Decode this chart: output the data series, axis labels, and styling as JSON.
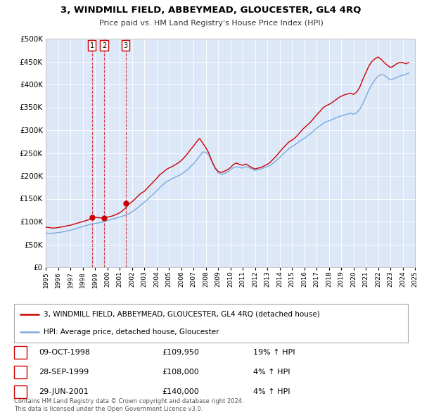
{
  "title": "3, WINDMILL FIELD, ABBEYMEAD, GLOUCESTER, GL4 4RQ",
  "subtitle": "Price paid vs. HM Land Registry's House Price Index (HPI)",
  "legend_line1": "3, WINDMILL FIELD, ABBEYMEAD, GLOUCESTER, GL4 4RQ (detached house)",
  "legend_line2": "HPI: Average price, detached house, Gloucester",
  "red_line_color": "#cc0000",
  "blue_line_color": "#7aaadd",
  "plot_bg_color": "#dce8f8",
  "footer1": "Contains HM Land Registry data © Crown copyright and database right 2024.",
  "footer2": "This data is licensed under the Open Government Licence v3.0.",
  "transactions": [
    {
      "num": 1,
      "date_label": "09-OCT-1998",
      "price": 109950,
      "date_x": 1998.77,
      "pct": "19%"
    },
    {
      "num": 2,
      "date_label": "28-SEP-1999",
      "price": 108000,
      "date_x": 1999.74,
      "pct": "4%"
    },
    {
      "num": 3,
      "date_label": "29-JUN-2001",
      "price": 140000,
      "date_x": 2001.49,
      "pct": "4%"
    }
  ],
  "hpi_x": [
    1995.0,
    1995.25,
    1995.5,
    1995.75,
    1996.0,
    1996.25,
    1996.5,
    1996.75,
    1997.0,
    1997.25,
    1997.5,
    1997.75,
    1998.0,
    1998.25,
    1998.5,
    1998.75,
    1999.0,
    1999.25,
    1999.5,
    1999.75,
    2000.0,
    2000.25,
    2000.5,
    2000.75,
    2001.0,
    2001.25,
    2001.5,
    2001.75,
    2002.0,
    2002.25,
    2002.5,
    2002.75,
    2003.0,
    2003.25,
    2003.5,
    2003.75,
    2004.0,
    2004.25,
    2004.5,
    2004.75,
    2005.0,
    2005.25,
    2005.5,
    2005.75,
    2006.0,
    2006.25,
    2006.5,
    2006.75,
    2007.0,
    2007.25,
    2007.5,
    2007.75,
    2008.0,
    2008.25,
    2008.5,
    2008.75,
    2009.0,
    2009.25,
    2009.5,
    2009.75,
    2010.0,
    2010.25,
    2010.5,
    2010.75,
    2011.0,
    2011.25,
    2011.5,
    2011.75,
    2012.0,
    2012.25,
    2012.5,
    2012.75,
    2013.0,
    2013.25,
    2013.5,
    2013.75,
    2014.0,
    2014.25,
    2014.5,
    2014.75,
    2015.0,
    2015.25,
    2015.5,
    2015.75,
    2016.0,
    2016.25,
    2016.5,
    2016.75,
    2017.0,
    2017.25,
    2017.5,
    2017.75,
    2018.0,
    2018.25,
    2018.5,
    2018.75,
    2019.0,
    2019.25,
    2019.5,
    2019.75,
    2020.0,
    2020.25,
    2020.5,
    2020.75,
    2021.0,
    2021.25,
    2021.5,
    2021.75,
    2022.0,
    2022.25,
    2022.5,
    2022.75,
    2023.0,
    2023.25,
    2023.5,
    2023.75,
    2024.0,
    2024.25,
    2024.5
  ],
  "hpi_y": [
    75000,
    74000,
    74500,
    75000,
    76000,
    77000,
    78000,
    79500,
    81000,
    83000,
    85000,
    87000,
    89000,
    91000,
    93000,
    95000,
    96000,
    97000,
    98500,
    100000,
    102000,
    104000,
    106000,
    108000,
    110000,
    112000,
    114000,
    117000,
    121000,
    126000,
    131000,
    137000,
    142000,
    148000,
    154000,
    160000,
    167000,
    174000,
    180000,
    186000,
    190000,
    194000,
    197000,
    200000,
    203000,
    208000,
    213000,
    220000,
    226000,
    234000,
    243000,
    252000,
    252000,
    245000,
    232000,
    217000,
    207000,
    203000,
    205000,
    208000,
    213000,
    218000,
    220000,
    218000,
    217000,
    220000,
    218000,
    215000,
    212000,
    213000,
    215000,
    218000,
    220000,
    223000,
    228000,
    234000,
    240000,
    247000,
    253000,
    259000,
    264000,
    268000,
    273000,
    278000,
    282000,
    287000,
    292000,
    298000,
    304000,
    309000,
    314000,
    318000,
    320000,
    323000,
    326000,
    329000,
    331000,
    333000,
    335000,
    337000,
    335000,
    338000,
    345000,
    357000,
    372000,
    388000,
    400000,
    410000,
    418000,
    422000,
    420000,
    415000,
    410000,
    412000,
    415000,
    418000,
    420000,
    422000,
    425000
  ],
  "red_x": [
    1995.0,
    1995.25,
    1995.5,
    1995.75,
    1996.0,
    1996.25,
    1996.5,
    1996.75,
    1997.0,
    1997.25,
    1997.5,
    1997.75,
    1998.0,
    1998.25,
    1998.5,
    1998.75,
    1999.0,
    1999.25,
    1999.5,
    1999.75,
    2000.0,
    2000.25,
    2000.5,
    2000.75,
    2001.0,
    2001.25,
    2001.5,
    2001.75,
    2002.0,
    2002.25,
    2002.5,
    2002.75,
    2003.0,
    2003.25,
    2003.5,
    2003.75,
    2004.0,
    2004.25,
    2004.5,
    2004.75,
    2005.0,
    2005.25,
    2005.5,
    2005.75,
    2006.0,
    2006.25,
    2006.5,
    2006.75,
    2007.0,
    2007.25,
    2007.5,
    2007.75,
    2008.0,
    2008.25,
    2008.5,
    2008.75,
    2009.0,
    2009.25,
    2009.5,
    2009.75,
    2010.0,
    2010.25,
    2010.5,
    2010.75,
    2011.0,
    2011.25,
    2011.5,
    2011.75,
    2012.0,
    2012.25,
    2012.5,
    2012.75,
    2013.0,
    2013.25,
    2013.5,
    2013.75,
    2014.0,
    2014.25,
    2014.5,
    2014.75,
    2015.0,
    2015.25,
    2015.5,
    2015.75,
    2016.0,
    2016.25,
    2016.5,
    2016.75,
    2017.0,
    2017.25,
    2017.5,
    2017.75,
    2018.0,
    2018.25,
    2018.5,
    2018.75,
    2019.0,
    2019.25,
    2019.5,
    2019.75,
    2020.0,
    2020.25,
    2020.5,
    2020.75,
    2021.0,
    2021.25,
    2021.5,
    2021.75,
    2022.0,
    2022.25,
    2022.5,
    2022.75,
    2023.0,
    2023.25,
    2023.5,
    2023.75,
    2024.0,
    2024.25,
    2024.5
  ],
  "red_y": [
    88000,
    87000,
    86000,
    86000,
    87000,
    88000,
    89000,
    91000,
    92000,
    94000,
    96000,
    98000,
    100000,
    102000,
    104000,
    108000,
    110000,
    108500,
    108000,
    108000,
    110000,
    111000,
    113000,
    116000,
    119000,
    124000,
    130000,
    138000,
    143000,
    149000,
    156000,
    162000,
    166000,
    173000,
    180000,
    187000,
    194000,
    202000,
    207000,
    213000,
    217000,
    220000,
    224000,
    228000,
    233000,
    240000,
    248000,
    257000,
    265000,
    274000,
    282000,
    272000,
    262000,
    250000,
    232000,
    218000,
    210000,
    207000,
    210000,
    213000,
    218000,
    225000,
    228000,
    225000,
    223000,
    226000,
    222000,
    218000,
    215000,
    217000,
    218000,
    222000,
    225000,
    230000,
    237000,
    244000,
    252000,
    260000,
    267000,
    274000,
    278000,
    283000,
    290000,
    298000,
    305000,
    311000,
    317000,
    325000,
    333000,
    340000,
    348000,
    353000,
    356000,
    360000,
    365000,
    370000,
    374000,
    377000,
    379000,
    381000,
    378000,
    383000,
    393000,
    410000,
    425000,
    440000,
    450000,
    456000,
    460000,
    455000,
    448000,
    442000,
    437000,
    440000,
    445000,
    448000,
    448000,
    445000,
    448000
  ],
  "ylim": [
    0,
    500000
  ],
  "xlim": [
    1995.0,
    2025.0
  ],
  "yticks": [
    0,
    50000,
    100000,
    150000,
    200000,
    250000,
    300000,
    350000,
    400000,
    450000,
    500000
  ],
  "ytick_labels": [
    "£0",
    "£50K",
    "£100K",
    "£150K",
    "£200K",
    "£250K",
    "£300K",
    "£350K",
    "£400K",
    "£450K",
    "£500K"
  ],
  "xticks": [
    1995,
    1996,
    1997,
    1998,
    1999,
    2000,
    2001,
    2002,
    2003,
    2004,
    2005,
    2006,
    2007,
    2008,
    2009,
    2010,
    2011,
    2012,
    2013,
    2014,
    2015,
    2016,
    2017,
    2018,
    2019,
    2020,
    2021,
    2022,
    2023,
    2024,
    2025
  ],
  "xtick_labels": [
    "1995",
    "1996",
    "1997",
    "1998",
    "1999",
    "2000",
    "2001",
    "2002",
    "2003",
    "2004",
    "2005",
    "2006",
    "2007",
    "2008",
    "2009",
    "2010",
    "2011",
    "2012",
    "2013",
    "2014",
    "2015",
    "2016",
    "2017",
    "2018",
    "2019",
    "2020",
    "2021",
    "2022",
    "2023",
    "2024",
    "2025"
  ]
}
